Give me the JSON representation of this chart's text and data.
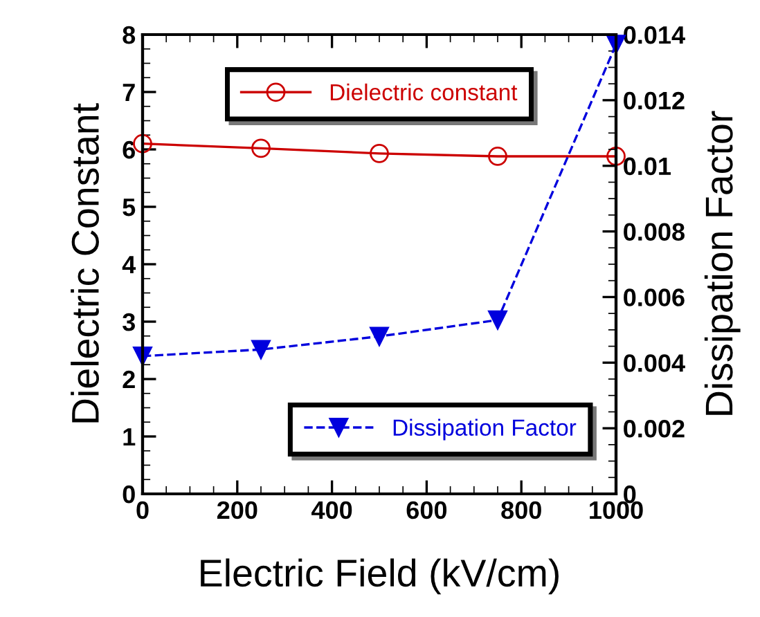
{
  "chart_data": {
    "type": "line",
    "xlabel": "Electric Field (kV/cm)",
    "ylabel": "Dielectric Constant",
    "y2label": "Dissipation Factor",
    "x": [
      0,
      250,
      500,
      750,
      1000
    ],
    "series": [
      {
        "name": "Dielectric constant",
        "color": "#cc0000",
        "values": [
          6.1,
          6.02,
          5.93,
          5.88,
          5.88
        ],
        "marker": "circle",
        "line_style": "solid"
      },
      {
        "name": "Dissipation Factor",
        "color": "#0000dd",
        "values": [
          0.0042,
          0.0044,
          0.0048,
          0.0053,
          0.0137
        ],
        "axis": "y2",
        "marker": "triangle",
        "line_style": "dashed"
      }
    ],
    "xlim": [
      0,
      1000
    ],
    "xticks": [
      0,
      200,
      400,
      600,
      800,
      1000
    ],
    "ylim": [
      0,
      8
    ],
    "yticks": [
      0,
      1,
      2,
      3,
      4,
      5,
      6,
      7,
      8
    ],
    "y2lim": [
      0,
      0.014
    ],
    "y2ticks": [
      {
        "value": 0,
        "label": "0"
      },
      {
        "value": 0.002,
        "label": "0.002"
      },
      {
        "value": 0.004,
        "label": "0.004"
      },
      {
        "value": 0.006,
        "label": "0.006"
      },
      {
        "value": 0.008,
        "label": "0.008"
      },
      {
        "value": 0.01,
        "label": "0.01"
      },
      {
        "value": 0.012,
        "label": "0.012"
      },
      {
        "value": 0.014,
        "label": "0.014"
      }
    ],
    "grid": false,
    "legend": "top"
  }
}
